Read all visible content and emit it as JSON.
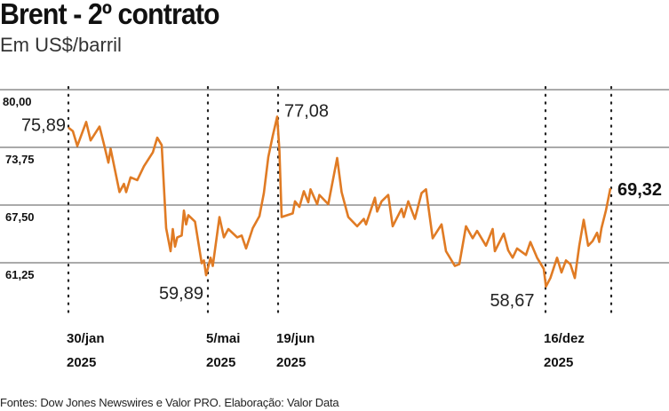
{
  "chart_data": {
    "type": "line",
    "title": "Brent - 2º contrato",
    "subtitle": "Em US$/barril",
    "source": "Fontes: Dow Jones Newswires e Valor PRO. Elaboração: Valor Data",
    "xlabel": "",
    "ylabel": "US$/barril",
    "x_unit": "approx. trading days since 30/jan/2025",
    "xlim": [
      0,
      244
    ],
    "ylim": [
      55.5,
      80
    ],
    "grid": true,
    "color": "#e07b24",
    "yticks": [
      {
        "value": 80.0,
        "label": "80,00"
      },
      {
        "value": 73.75,
        "label": "73,75"
      },
      {
        "value": 67.5,
        "label": "67,50"
      },
      {
        "value": 61.25,
        "label": "61,25"
      }
    ],
    "markers": [
      {
        "x": 0,
        "label": "30/jan",
        "year": "2025"
      },
      {
        "x": 62.8,
        "label": "5/mai",
        "year": "2025"
      },
      {
        "x": 94.4,
        "label": "19/jun",
        "year": "2025"
      },
      {
        "x": 214.8,
        "label": "16/dez",
        "year": "2025"
      },
      {
        "x": 244.4,
        "label": "",
        "year": ""
      }
    ],
    "annotations": [
      {
        "x": 0,
        "y": 75.89,
        "label": "75,89",
        "pos": "left",
        "bold": false
      },
      {
        "x": 62,
        "y": 59.89,
        "label": "59,89",
        "pos": "below-left",
        "bold": false
      },
      {
        "x": 94,
        "y": 77.08,
        "label": "77,08",
        "pos": "right",
        "bold": false
      },
      {
        "x": 215,
        "y": 58.67,
        "label": "58,67",
        "pos": "left-below",
        "bold": false
      },
      {
        "x": 244,
        "y": 69.32,
        "label": "69,32",
        "pos": "right",
        "bold": true
      }
    ],
    "series": [
      {
        "name": "Brent - 2º contrato",
        "points": [
          [
            0,
            75.89
          ],
          [
            2,
            75.5
          ],
          [
            4,
            73.9
          ],
          [
            8,
            76.5
          ],
          [
            10,
            74.5
          ],
          [
            14,
            76.0
          ],
          [
            16,
            74.1
          ],
          [
            18,
            72.1
          ],
          [
            19,
            73.6
          ],
          [
            23,
            68.9
          ],
          [
            25,
            69.8
          ],
          [
            26,
            68.9
          ],
          [
            28,
            70.5
          ],
          [
            31,
            70.2
          ],
          [
            34,
            71.7
          ],
          [
            38,
            73.2
          ],
          [
            40,
            74.8
          ],
          [
            42,
            74.0
          ],
          [
            44,
            65.0
          ],
          [
            46,
            62.5
          ],
          [
            47,
            64.9
          ],
          [
            48,
            63.0
          ],
          [
            49,
            64.0
          ],
          [
            51,
            64.2
          ],
          [
            52,
            66.9
          ],
          [
            53,
            65.4
          ],
          [
            54,
            66.4
          ],
          [
            57,
            65.7
          ],
          [
            60,
            61.2
          ],
          [
            61,
            61.5
          ],
          [
            62,
            59.89
          ],
          [
            64,
            61.8
          ],
          [
            65,
            60.9
          ],
          [
            68,
            66.2
          ],
          [
            70,
            64.0
          ],
          [
            72,
            64.9
          ],
          [
            76,
            64.0
          ],
          [
            78,
            64.2
          ],
          [
            80,
            62.8
          ],
          [
            83,
            65.0
          ],
          [
            86,
            66.3
          ],
          [
            88,
            68.8
          ],
          [
            90,
            72.7
          ],
          [
            92,
            75.0
          ],
          [
            94,
            77.08
          ],
          [
            95,
            73.4
          ],
          [
            96,
            66.2
          ],
          [
            101,
            66.6
          ],
          [
            102,
            67.9
          ],
          [
            104,
            67.3
          ],
          [
            106,
            69.0
          ],
          [
            108,
            67.8
          ],
          [
            109,
            69.2
          ],
          [
            112,
            67.6
          ],
          [
            113,
            68.6
          ],
          [
            117,
            67.6
          ],
          [
            121,
            72.6
          ],
          [
            123,
            68.9
          ],
          [
            126,
            66.2
          ],
          [
            130,
            65.2
          ],
          [
            133,
            66.0
          ],
          [
            134,
            65.4
          ],
          [
            138,
            68.3
          ],
          [
            139,
            66.8
          ],
          [
            141,
            67.9
          ],
          [
            144,
            68.6
          ],
          [
            146,
            65.2
          ],
          [
            150,
            67.1
          ],
          [
            151,
            66.2
          ],
          [
            153,
            67.9
          ],
          [
            156,
            66.0
          ],
          [
            159,
            68.8
          ],
          [
            161,
            69.2
          ],
          [
            164,
            63.9
          ],
          [
            168,
            65.4
          ],
          [
            170,
            62.5
          ],
          [
            174,
            60.9
          ],
          [
            176,
            61.1
          ],
          [
            179,
            65.2
          ],
          [
            182,
            63.9
          ],
          [
            184,
            64.7
          ],
          [
            188,
            63.1
          ],
          [
            191,
            64.9
          ],
          [
            192,
            62.5
          ],
          [
            196,
            64.4
          ],
          [
            198,
            62.6
          ],
          [
            200,
            61.8
          ],
          [
            202,
            62.8
          ],
          [
            206,
            62.1
          ],
          [
            208,
            63.5
          ],
          [
            211,
            61.8
          ],
          [
            214,
            60.6
          ],
          [
            215,
            58.67
          ],
          [
            217,
            59.6
          ],
          [
            220,
            61.8
          ],
          [
            222,
            60.2
          ],
          [
            224,
            61.5
          ],
          [
            226,
            61.1
          ],
          [
            228,
            59.6
          ],
          [
            230,
            63.1
          ],
          [
            232,
            65.9
          ],
          [
            234,
            63.1
          ],
          [
            236,
            63.6
          ],
          [
            238,
            64.5
          ],
          [
            239,
            63.5
          ],
          [
            240,
            65.0
          ],
          [
            242,
            66.9
          ],
          [
            244,
            69.32
          ]
        ]
      }
    ]
  }
}
